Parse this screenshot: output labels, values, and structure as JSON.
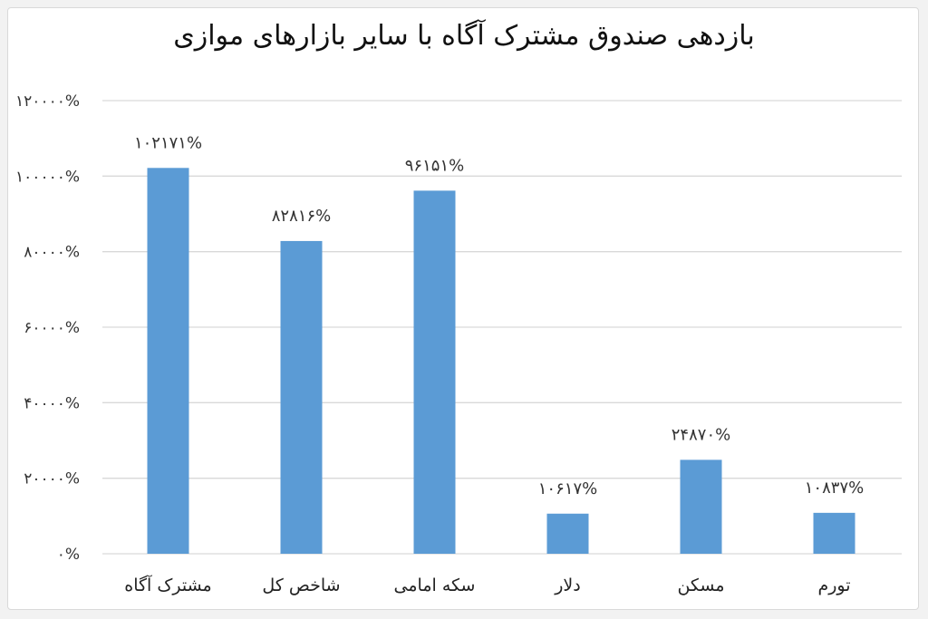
{
  "chart_data": {
    "type": "bar",
    "title": "بازدهی صندوق مشترک آگاه با سایر بازارهای موازی",
    "xlabel": "",
    "ylabel": "",
    "categories": [
      "مشترک آگاه",
      "شاخص کل",
      "سکه امامی",
      "دلار",
      "مسکن",
      "تورم"
    ],
    "values": [
      102171,
      82816,
      96151,
      10617,
      24870,
      10837
    ],
    "data_labels": [
      "۱۰۲۱۷۱%",
      "۸۲۸۱۶%",
      "۹۶۱۵۱%",
      "۱۰۶۱۷%",
      "۲۴۸۷۰%",
      "۱۰۸۳۷%"
    ],
    "ylim": [
      0,
      120000
    ],
    "yticks": [
      0,
      20000,
      40000,
      60000,
      80000,
      100000,
      120000
    ],
    "ytick_labels": [
      "۰%",
      "۲۰۰۰۰%",
      "۴۰۰۰۰%",
      "۶۰۰۰۰%",
      "۸۰۰۰۰%",
      "۱۰۰۰۰۰%",
      "۱۲۰۰۰۰%"
    ],
    "grid": true,
    "legend": "none",
    "colors": {
      "bar": "#5b9bd5",
      "grid": "#d9d9d9",
      "background": "#ffffff"
    }
  }
}
